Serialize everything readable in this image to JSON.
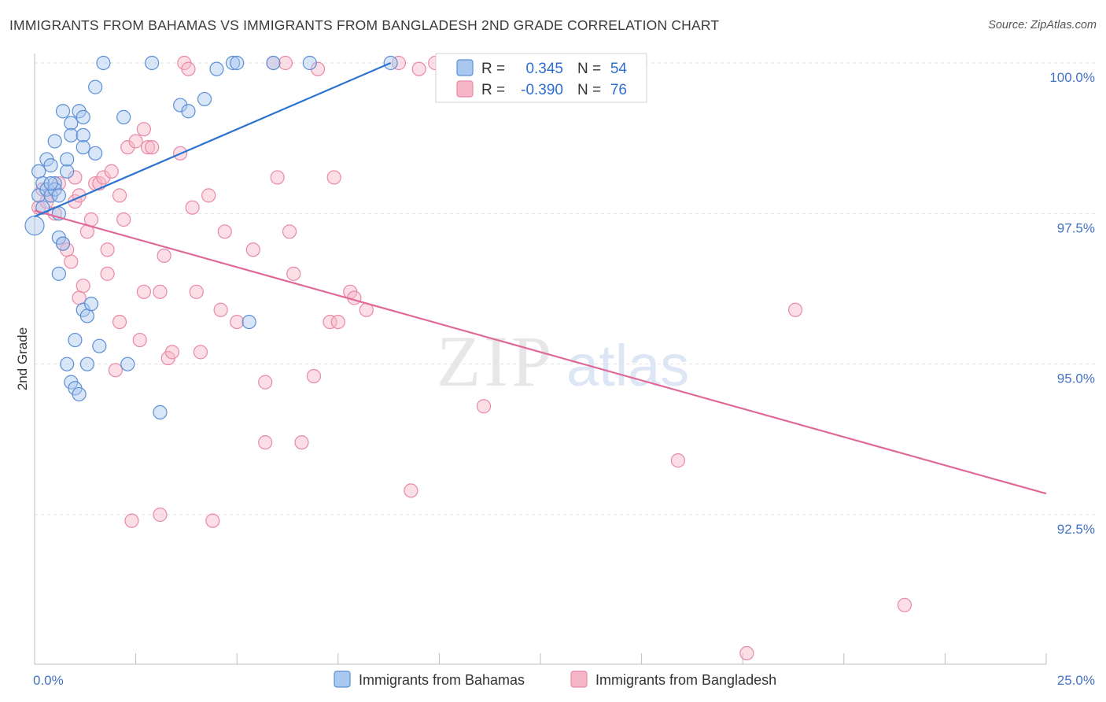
{
  "title": "IMMIGRANTS FROM BAHAMAS VS IMMIGRANTS FROM BANGLADESH 2ND GRADE CORRELATION CHART",
  "source": "Source: ZipAtlas.com",
  "watermark": {
    "zip": "ZIP",
    "atlas": "atlas"
  },
  "colors": {
    "blue_fill": "#a8c8f0",
    "blue_stroke": "#5b8fd6",
    "blue_line": "#2d74d0",
    "pink_fill": "#f6b6c8",
    "pink_stroke": "#e889a6",
    "pink_line": "#e0699a",
    "value_blue": "#2d6fd0"
  },
  "legend": {
    "rows": [
      {
        "r_label": "R =",
        "r_value": "0.345",
        "n_label": "N =",
        "n_value": "54"
      },
      {
        "r_label": "R =",
        "r_value": "-0.390",
        "n_label": "N =",
        "n_value": "76"
      }
    ]
  },
  "bottom_legend": {
    "series1": "Immigrants from Bahamas",
    "series2": "Immigrants from Bangladesh"
  },
  "chart_data": {
    "type": "scatter",
    "title": "IMMIGRANTS FROM BAHAMAS VS IMMIGRANTS FROM BANGLADESH 2ND GRADE CORRELATION CHART",
    "xlabel": "",
    "ylabel": "2nd Grade",
    "xlim": [
      0,
      25
    ],
    "ylim": [
      89.8,
      100.3
    ],
    "x_tick_labels": {
      "left": "0.0%",
      "right": "25.0%"
    },
    "y_ticks": [
      {
        "value": 100.0,
        "label": "100.0%"
      },
      {
        "value": 97.5,
        "label": "97.5%"
      },
      {
        "value": 95.0,
        "label": "95.0%"
      },
      {
        "value": 92.5,
        "label": "92.5%"
      }
    ],
    "series": [
      {
        "name": "Immigrants from Bahamas",
        "r": 0.345,
        "n": 54,
        "trend": {
          "x": [
            0,
            8.8
          ],
          "y": [
            97.45,
            100.0
          ]
        },
        "points": [
          [
            0.0,
            97.3
          ],
          [
            0.1,
            97.8
          ],
          [
            0.1,
            98.2
          ],
          [
            0.2,
            98.0
          ],
          [
            0.2,
            97.6
          ],
          [
            0.3,
            97.9
          ],
          [
            0.3,
            98.4
          ],
          [
            0.4,
            98.3
          ],
          [
            0.4,
            97.8
          ],
          [
            0.5,
            98.0
          ],
          [
            0.5,
            97.9
          ],
          [
            0.5,
            98.7
          ],
          [
            0.6,
            97.8
          ],
          [
            0.6,
            97.5
          ],
          [
            0.6,
            97.1
          ],
          [
            0.6,
            96.5
          ],
          [
            0.7,
            99.2
          ],
          [
            0.7,
            97.0
          ],
          [
            0.8,
            98.2
          ],
          [
            0.8,
            98.4
          ],
          [
            0.9,
            99.0
          ],
          [
            0.9,
            98.8
          ],
          [
            0.9,
            94.7
          ],
          [
            1.0,
            95.4
          ],
          [
            1.0,
            94.6
          ],
          [
            1.1,
            94.5
          ],
          [
            1.1,
            99.2
          ],
          [
            1.2,
            98.8
          ],
          [
            1.2,
            99.1
          ],
          [
            1.2,
            95.9
          ],
          [
            1.3,
            95.8
          ],
          [
            1.3,
            95.0
          ],
          [
            1.5,
            98.5
          ],
          [
            1.5,
            99.6
          ],
          [
            1.6,
            95.3
          ],
          [
            1.7,
            100.0
          ],
          [
            2.2,
            99.1
          ],
          [
            2.3,
            95.0
          ],
          [
            2.9,
            100.0
          ],
          [
            3.1,
            94.2
          ],
          [
            3.6,
            99.3
          ],
          [
            3.8,
            99.2
          ],
          [
            4.2,
            99.4
          ],
          [
            4.5,
            99.9
          ],
          [
            4.9,
            100.0
          ],
          [
            5.0,
            100.0
          ],
          [
            5.3,
            95.7
          ],
          [
            5.9,
            100.0
          ],
          [
            6.8,
            100.0
          ],
          [
            8.8,
            100.0
          ],
          [
            1.4,
            96.0
          ],
          [
            0.4,
            98.0
          ],
          [
            0.8,
            95.0
          ],
          [
            1.2,
            98.6
          ]
        ]
      },
      {
        "name": "Immigrants from Bangladesh",
        "r": -0.39,
        "n": 76,
        "trend": {
          "x": [
            0,
            25
          ],
          "y": [
            97.55,
            92.85
          ]
        },
        "points": [
          [
            0.1,
            97.6
          ],
          [
            0.2,
            97.9
          ],
          [
            0.3,
            97.7
          ],
          [
            0.4,
            97.8
          ],
          [
            0.5,
            97.5
          ],
          [
            0.6,
            98.0
          ],
          [
            0.7,
            97.0
          ],
          [
            0.8,
            96.9
          ],
          [
            0.9,
            96.7
          ],
          [
            1.0,
            97.7
          ],
          [
            1.1,
            96.1
          ],
          [
            1.1,
            97.8
          ],
          [
            1.2,
            96.3
          ],
          [
            1.3,
            97.2
          ],
          [
            1.4,
            97.4
          ],
          [
            1.5,
            98.0
          ],
          [
            1.6,
            98.0
          ],
          [
            1.7,
            98.1
          ],
          [
            1.8,
            96.5
          ],
          [
            1.8,
            96.9
          ],
          [
            1.9,
            98.2
          ],
          [
            2.0,
            94.9
          ],
          [
            2.1,
            95.7
          ],
          [
            2.1,
            97.8
          ],
          [
            2.2,
            97.4
          ],
          [
            2.3,
            98.6
          ],
          [
            2.4,
            92.4
          ],
          [
            2.5,
            98.7
          ],
          [
            2.6,
            95.4
          ],
          [
            2.7,
            96.2
          ],
          [
            2.7,
            98.9
          ],
          [
            2.8,
            98.6
          ],
          [
            2.9,
            98.6
          ],
          [
            3.1,
            92.5
          ],
          [
            3.1,
            96.2
          ],
          [
            3.2,
            96.8
          ],
          [
            3.3,
            95.1
          ],
          [
            3.4,
            95.2
          ],
          [
            3.6,
            98.5
          ],
          [
            3.7,
            100.0
          ],
          [
            3.8,
            99.9
          ],
          [
            3.9,
            97.6
          ],
          [
            4.0,
            96.2
          ],
          [
            4.1,
            95.2
          ],
          [
            4.3,
            97.8
          ],
          [
            4.4,
            92.4
          ],
          [
            4.6,
            95.9
          ],
          [
            4.7,
            97.2
          ],
          [
            5.0,
            95.7
          ],
          [
            5.4,
            96.9
          ],
          [
            5.7,
            94.7
          ],
          [
            5.7,
            93.7
          ],
          [
            5.9,
            100.0
          ],
          [
            6.0,
            98.1
          ],
          [
            6.2,
            100.0
          ],
          [
            6.3,
            97.2
          ],
          [
            6.4,
            96.5
          ],
          [
            6.6,
            93.7
          ],
          [
            6.9,
            94.8
          ],
          [
            7.0,
            99.9
          ],
          [
            7.3,
            95.7
          ],
          [
            7.4,
            98.1
          ],
          [
            7.5,
            95.7
          ],
          [
            7.8,
            96.2
          ],
          [
            7.9,
            96.1
          ],
          [
            8.2,
            95.9
          ],
          [
            9.0,
            100.0
          ],
          [
            9.3,
            92.9
          ],
          [
            9.5,
            99.9
          ],
          [
            9.9,
            100.0
          ],
          [
            11.1,
            94.3
          ],
          [
            15.9,
            93.4
          ],
          [
            17.6,
            90.2
          ],
          [
            18.8,
            95.9
          ],
          [
            21.5,
            91.0
          ],
          [
            1.0,
            98.1
          ]
        ]
      }
    ]
  }
}
